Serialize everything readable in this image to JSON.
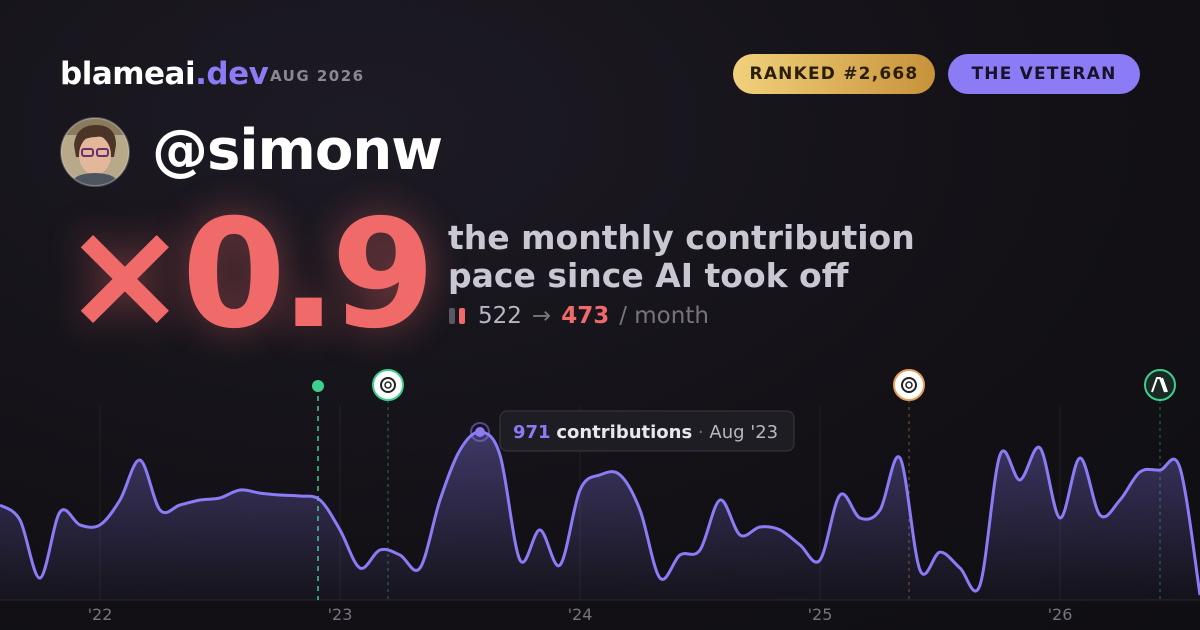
{
  "header": {
    "brand": "blameai",
    "brand_suffix": ".dev",
    "date": "AUG 2026",
    "rank": "RANKED #2,668",
    "tier": "THE VETERAN",
    "handle": "@simonw"
  },
  "headline": {
    "multiplier": "×0.9",
    "line1": "the monthly contribution",
    "line2": "pace since AI took off",
    "before": "522",
    "arrow": "→",
    "after": "473",
    "unit": "/ month"
  },
  "tooltip": {
    "unit": "contributions",
    "separator": "·",
    "date": "Aug '23"
  },
  "chart_data": {
    "type": "area",
    "color": "#8b7cf6",
    "categories": [
      null,
      null,
      null,
      null,
      null,
      "'22",
      null,
      null,
      null,
      null,
      null,
      null,
      null,
      null,
      null,
      null,
      null,
      "'23",
      null,
      null,
      null,
      null,
      null,
      null,
      null,
      null,
      null,
      null,
      null,
      "'24",
      null,
      null,
      null,
      null,
      null,
      null,
      null,
      null,
      null,
      null,
      null,
      "'25",
      null,
      null,
      null,
      null,
      null,
      null,
      null,
      null,
      null,
      null,
      null,
      "'26",
      null,
      null,
      null,
      null,
      null,
      null,
      null
    ],
    "values": [
      549,
      462,
      127,
      509,
      434,
      434,
      578,
      809,
      520,
      549,
      578,
      590,
      636,
      618,
      607,
      601,
      578,
      405,
      185,
      289,
      260,
      185,
      578,
      867,
      971,
      838,
      231,
      405,
      202,
      636,
      723,
      723,
      520,
      127,
      260,
      289,
      578,
      376,
      422,
      405,
      318,
      231,
      607,
      474,
      520,
      821,
      173,
      277,
      185,
      87,
      838,
      694,
      879,
      474,
      821,
      491,
      578,
      740,
      751,
      763,
      29
    ]
  }
}
